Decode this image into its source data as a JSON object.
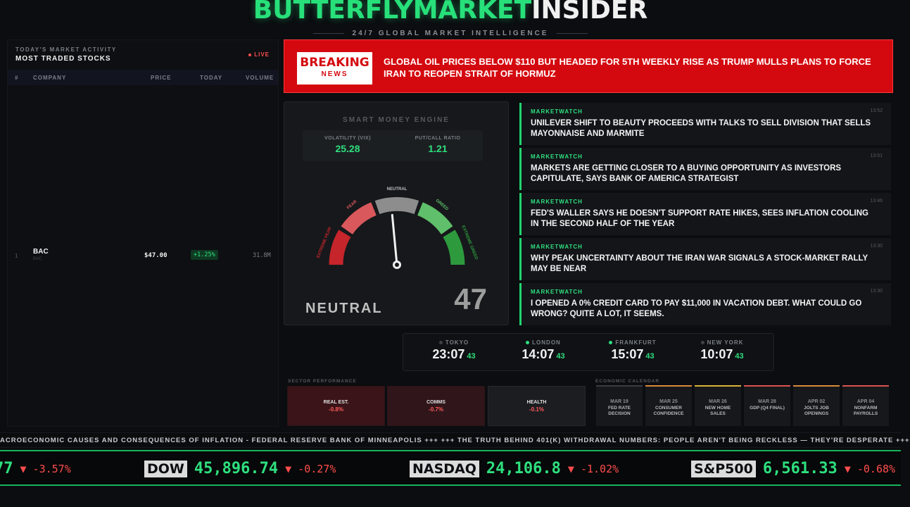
{
  "brand": {
    "part1": "BUTTERFLYMARKET",
    "part2": "INSIDER",
    "tagline": "24/7 GLOBAL MARKET INTELLIGENCE"
  },
  "stocks": {
    "subtitle": "TODAY'S MARKET ACTIVITY",
    "title": "MOST TRADED STOCKS",
    "live": "LIVE",
    "columns": [
      "#",
      "COMPANY",
      "PRICE",
      "TODAY",
      "VOLUME"
    ],
    "rows": [
      {
        "rank": "1",
        "name": "BAC",
        "ticker": "BAC",
        "price": "$47.00",
        "change": "+1.25%",
        "volume": "31.8M"
      }
    ]
  },
  "breaking": {
    "badge_top": "BREAKING",
    "badge_bottom": "NEWS",
    "headline": "GLOBAL OIL PRICES BELOW $110 BUT HEADED FOR 5TH WEEKLY RISE AS TRUMP MULLS PLANS TO FORCE IRAN TO REOPEN STRAIT OF HORMUZ"
  },
  "engine": {
    "title": "SMART MONEY ENGINE",
    "vix_label": "VOLATILITY (VIX)",
    "vix": "25.28",
    "pc_label": "PUT/CALL RATIO",
    "pc": "1.21",
    "zones": [
      "EXTREME FEAR",
      "FEAR",
      "NEUTRAL",
      "GREED",
      "EXTREME GREED"
    ],
    "status": "NEUTRAL",
    "value": "47",
    "value_num": 47
  },
  "news": [
    {
      "source": "MARKETWATCH",
      "time": "13:52",
      "headline": "UNILEVER SHIFT TO BEAUTY PROCEEDS WITH TALKS TO SELL DIVISION THAT SELLS MAYONNAISE AND MARMITE"
    },
    {
      "source": "MARKETWATCH",
      "time": "13:51",
      "headline": "MARKETS ARE GETTING CLOSER TO A BUYING OPPORTUNITY AS INVESTORS CAPITULATE, SAYS BANK OF AMERICA STRATEGIST"
    },
    {
      "source": "MARKETWATCH",
      "time": "13:46",
      "headline": "FED'S WALLER SAYS HE DOESN'T SUPPORT RATE HIKES, SEES INFLATION COOLING IN THE SECOND HALF OF THE YEAR"
    },
    {
      "source": "MARKETWATCH",
      "time": "13:30",
      "headline": "WHY PEAK UNCERTAINTY ABOUT THE IRAN WAR SIGNALS A STOCK-MARKET RALLY MAY BE NEAR"
    },
    {
      "source": "MARKETWATCH",
      "time": "13:30",
      "headline": "I OPENED A 0% CREDIT CARD TO PAY $11,000 IN VACATION DEBT. WHAT COULD GO WRONG? QUITE A LOT, IT SEEMS."
    }
  ],
  "clocks": [
    {
      "city": "TOKYO",
      "time": "23:07",
      "sec": "43",
      "open": false
    },
    {
      "city": "LONDON",
      "time": "14:07",
      "sec": "43",
      "open": true
    },
    {
      "city": "FRANKFURT",
      "time": "15:07",
      "sec": "43",
      "open": true
    },
    {
      "city": "NEW YORK",
      "time": "10:07",
      "sec": "43",
      "open": false
    }
  ],
  "sectors": {
    "label": "SECTOR PERFORMANCE",
    "items": [
      {
        "name": "REAL EST.",
        "change": "-0.8%"
      },
      {
        "name": "COMMS",
        "change": "-0.7%"
      },
      {
        "name": "HEALTH",
        "change": "-0.1%"
      }
    ]
  },
  "calendar": {
    "label": "ECONOMIC CALENDAR",
    "items": [
      {
        "date": "MAR 19",
        "l1": "FED RATE",
        "l2": "DECISION",
        "color": "#3a3d42"
      },
      {
        "date": "MAR 25",
        "l1": "CONSUMER",
        "l2": "CONFIDENCE",
        "color": "#d98a3a"
      },
      {
        "date": "MAR 26",
        "l1": "NEW HOME",
        "l2": "SALES",
        "color": "#d9b23a"
      },
      {
        "date": "MAR 28",
        "l1": "GDP (Q4 FINAL)",
        "l2": "",
        "color": "#d9534f"
      },
      {
        "date": "APR 02",
        "l1": "JOLTS JOB",
        "l2": "OPENINGS",
        "color": "#d98a3a"
      },
      {
        "date": "APR 04",
        "l1": "NONFARM",
        "l2": "PAYROLLS",
        "color": "#d9534f"
      }
    ]
  },
  "ticker_text": "ACROECONOMIC CAUSES AND CONSEQUENCES OF INFLATION - FEDERAL RESERVE BANK OF MINNEAPOLIS +++ +++ THE TRUTH BEHIND 401(K) WITHDRAWAL NUMBERS: PEOPLE AREN'T BEING RECKLESS — THEY'RE DESPERATE +++",
  "quotes": [
    {
      "name": "",
      "price": "77",
      "change": "▼ -3.57%"
    },
    {
      "name": "DOW",
      "price": "45,896.74",
      "change": "▼ -0.27%"
    },
    {
      "name": "NASDAQ",
      "price": "24,106.8",
      "change": "▼ -1.02%"
    },
    {
      "name": "S&P500",
      "price": "6,561.33",
      "change": "▼ -0.68%"
    }
  ]
}
